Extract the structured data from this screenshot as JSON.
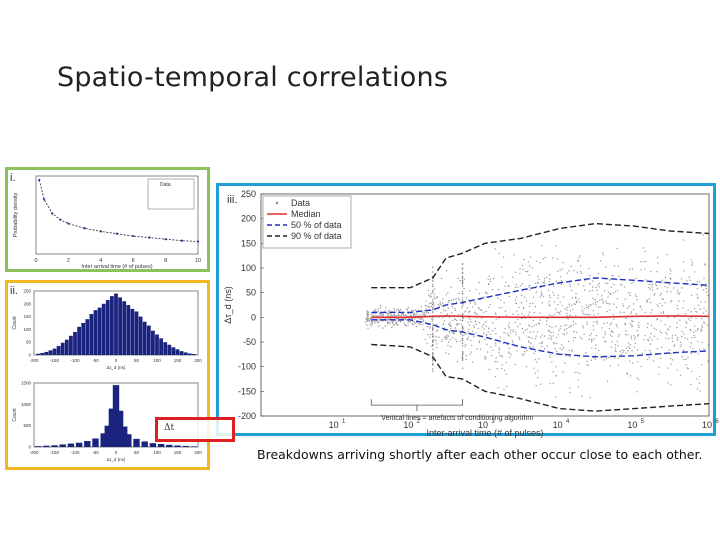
{
  "slide": {
    "title": "Spatio-temporal correlations",
    "caption": "Breakdowns arriving shortly after each other occur close to each other."
  },
  "panels": {
    "i": {
      "label": "i."
    },
    "ii": {
      "label": "ii."
    },
    "iii": {
      "label": "iii."
    }
  },
  "formula_text": "Δt",
  "colors": {
    "panel_i": "#8fc15a",
    "panel_ii": "#f2b824",
    "panel_iii": "#1ea0d7",
    "highlight": "#e02020",
    "median": "#e03030",
    "p50": "#2030c0",
    "p90": "#222222",
    "data": "#9a9a9a"
  },
  "chart_data": [
    {
      "type": "line",
      "ylabel": "Probability density",
      "xlabel": "Inter arrival time (# of pulses)",
      "x_ticks": [
        "0",
        "2",
        "4",
        "6",
        "8",
        "10"
      ],
      "xlim": [
        0,
        10
      ],
      "legend": [
        "Data"
      ],
      "x": [
        0.2,
        0.5,
        1,
        1.5,
        2,
        3,
        4,
        5,
        6,
        7,
        8,
        9,
        10
      ],
      "series": [
        {
          "name": "Data",
          "values": [
            9.5,
            7.0,
            5.2,
            4.4,
            3.9,
            3.3,
            2.9,
            2.6,
            2.3,
            2.1,
            1.9,
            1.7,
            1.6
          ]
        }
      ]
    },
    {
      "type": "bar",
      "ylabel": "Count",
      "xlabel": "Δτ_d (ns)",
      "x_ticks": [
        "-200",
        "-150",
        "-100",
        "-50",
        "0",
        "50",
        "100",
        "150",
        "200"
      ],
      "y_ticks": [
        "0",
        "50",
        "100",
        "150",
        "200",
        "250"
      ],
      "categories": [
        -190,
        -180,
        -170,
        -160,
        -150,
        -140,
        -130,
        -120,
        -110,
        -100,
        -90,
        -80,
        -70,
        -60,
        -50,
        -40,
        -30,
        -20,
        -10,
        0,
        10,
        20,
        30,
        40,
        50,
        60,
        70,
        80,
        90,
        100,
        110,
        120,
        130,
        140,
        150,
        160,
        170,
        180,
        190
      ],
      "values": [
        5,
        8,
        12,
        18,
        25,
        35,
        48,
        60,
        75,
        90,
        110,
        125,
        140,
        160,
        175,
        185,
        200,
        215,
        230,
        240,
        225,
        210,
        195,
        180,
        170,
        150,
        130,
        115,
        95,
        80,
        65,
        50,
        40,
        30,
        22,
        15,
        10,
        6,
        4
      ]
    },
    {
      "type": "bar",
      "ylabel": "Count",
      "xlabel": "Δτ_d (ns)",
      "x_ticks": [
        "-200",
        "-150",
        "-100",
        "-50",
        "0",
        "50",
        "100",
        "150",
        "200"
      ],
      "y_ticks": [
        "0",
        "500",
        "1000",
        "1500"
      ],
      "categories": [
        -190,
        -170,
        -150,
        -130,
        -110,
        -90,
        -70,
        -50,
        -30,
        -20,
        -10,
        0,
        10,
        20,
        30,
        50,
        70,
        90,
        110,
        130,
        150,
        170,
        190
      ],
      "values": [
        20,
        30,
        40,
        60,
        80,
        100,
        140,
        200,
        320,
        500,
        900,
        1450,
        850,
        480,
        300,
        190,
        130,
        90,
        70,
        50,
        35,
        25,
        15
      ]
    },
    {
      "type": "scatter",
      "title": "",
      "xlabel": "Inter-arrival time (# of pulses)",
      "ylabel": "Δτ_d (ns)",
      "x_scale": "log",
      "xlim": [
        1,
        1000000
      ],
      "ylim": [
        -200,
        250
      ],
      "y_ticks": [
        "-200",
        "-150",
        "-100",
        "-50",
        "0",
        "50",
        "100",
        "150",
        "200",
        "250"
      ],
      "x_tick_exponents": [
        "1",
        "2",
        "3",
        "4",
        "5",
        "6"
      ],
      "legend": [
        "Data",
        "Median",
        "50 % of data",
        "90 % of data"
      ],
      "legend_position": "top-left",
      "annotation": "Vertical lines = artefacts of conditioning algorithm",
      "x": [
        30,
        100,
        200,
        300,
        500,
        1000,
        3000,
        10000,
        30000,
        100000,
        300000,
        1000000
      ],
      "series": [
        {
          "name": "Median",
          "values": [
            0,
            0,
            2,
            3,
            2,
            1,
            0,
            0,
            0,
            2,
            3,
            2
          ]
        },
        {
          "name": "50 % of data upper",
          "values": [
            10,
            10,
            15,
            25,
            30,
            40,
            55,
            70,
            80,
            75,
            70,
            65
          ]
        },
        {
          "name": "50 % of data lower",
          "values": [
            -5,
            -5,
            -15,
            -25,
            -30,
            -40,
            -60,
            -75,
            -80,
            -78,
            -72,
            -68
          ]
        },
        {
          "name": "90 % of data upper",
          "values": [
            60,
            60,
            80,
            120,
            130,
            150,
            160,
            180,
            190,
            185,
            175,
            170
          ]
        },
        {
          "name": "90 % of data lower",
          "values": [
            -55,
            -60,
            -80,
            -120,
            -125,
            -150,
            -165,
            -185,
            -190,
            -185,
            -180,
            -175
          ]
        }
      ]
    }
  ]
}
